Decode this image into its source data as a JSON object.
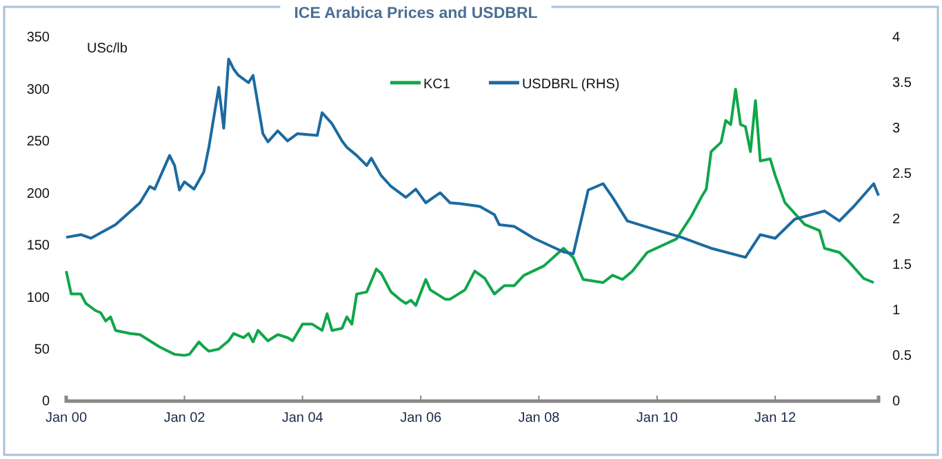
{
  "chart_data": {
    "type": "line",
    "title": "ICE Arabica Prices and USDBRL",
    "ylabel": "USc/lb",
    "xlim": [
      "2000-01",
      "2013-10"
    ],
    "xticks": [
      {
        "value": "2000-01",
        "label": "Jan 00"
      },
      {
        "value": "2002-01",
        "label": "Jan 02"
      },
      {
        "value": "2004-01",
        "label": "Jan 04"
      },
      {
        "value": "2006-01",
        "label": "Jan 06"
      },
      {
        "value": "2008-01",
        "label": "Jan 08"
      },
      {
        "value": "2010-01",
        "label": "Jan 10"
      },
      {
        "value": "2012-01",
        "label": "Jan 12"
      }
    ],
    "ylim": [
      0,
      350
    ],
    "yticks": [
      0,
      50,
      100,
      150,
      200,
      250,
      300,
      350
    ],
    "y2lim": [
      0,
      4
    ],
    "y2ticks": [
      0,
      0.5,
      1,
      1.5,
      2,
      2.5,
      3,
      3.5,
      4
    ],
    "grid": false,
    "legend": "top",
    "marker": "none",
    "line_style": "solid",
    "series": [
      {
        "name": "KC1",
        "color": "#10a64a",
        "x": [
          "2000-01",
          "2000-02",
          "2000-04",
          "2000-05",
          "2000-07",
          "2000-08",
          "2000-09",
          "2000-10",
          "2000-11",
          "2001-02",
          "2001-04",
          "2001-06",
          "2001-08",
          "2001-11",
          "2002-01",
          "2002-02",
          "2002-04",
          "2002-05",
          "2002-06",
          "2002-08",
          "2002-10",
          "2002-11",
          "2003-01",
          "2003-02",
          "2003-03",
          "2003-04",
          "2003-06",
          "2003-08",
          "2003-10",
          "2003-11",
          "2004-01",
          "2004-03",
          "2004-05",
          "2004-06",
          "2004-07",
          "2004-09",
          "2004-10",
          "2004-11",
          "2004-12",
          "2005-02",
          "2005-04",
          "2005-05",
          "2005-07",
          "2005-09",
          "2005-10",
          "2005-11",
          "2005-12",
          "2006-02",
          "2006-03",
          "2006-06",
          "2006-07",
          "2006-10",
          "2006-12",
          "2007-02",
          "2007-04",
          "2007-06",
          "2007-08",
          "2007-10",
          "2008-02",
          "2008-06",
          "2008-08",
          "2008-10",
          "2009-02",
          "2009-04",
          "2009-06",
          "2009-08",
          "2009-11",
          "2010-05",
          "2010-08",
          "2010-10",
          "2010-11",
          "2010-12",
          "2011-02",
          "2011-03",
          "2011-04",
          "2011-05",
          "2011-06",
          "2011-07",
          "2011-08",
          "2011-09",
          "2011-10",
          "2011-12",
          "2012-01",
          "2012-03",
          "2012-07",
          "2012-10",
          "2012-11",
          "2013-02",
          "2013-04",
          "2013-07",
          "2013-09"
        ],
        "values": [
          125,
          103,
          103,
          94,
          87,
          85,
          77,
          81,
          68,
          65,
          64,
          58,
          52,
          45,
          44,
          45,
          57,
          52,
          48,
          50,
          58,
          65,
          61,
          65,
          57,
          68,
          58,
          64,
          61,
          58,
          74,
          74,
          68,
          84,
          68,
          70,
          81,
          74,
          103,
          105,
          127,
          123,
          105,
          97,
          94,
          97,
          92,
          117,
          107,
          98,
          98,
          107,
          125,
          118,
          103,
          111,
          111,
          121,
          130,
          147,
          138,
          117,
          114,
          121,
          117,
          125,
          143,
          156,
          178,
          196,
          204,
          240,
          249,
          270,
          266,
          300,
          266,
          264,
          240,
          289,
          231,
          233,
          217,
          191,
          170,
          164,
          147,
          143,
          134,
          118,
          114
        ]
      },
      {
        "name": "USDBRL (RHS)",
        "color": "#1c6aa0",
        "axis": "y2",
        "x": [
          "2000-01",
          "2000-04",
          "2000-06",
          "2000-11",
          "2001-04",
          "2001-06",
          "2001-07",
          "2001-10",
          "2001-11",
          "2001-12",
          "2002-01",
          "2002-03",
          "2002-05",
          "2002-06",
          "2002-08",
          "2002-09",
          "2002-10",
          "2002-11",
          "2002-12",
          "2003-02",
          "2003-03",
          "2003-05",
          "2003-06",
          "2003-08",
          "2003-10",
          "2003-12",
          "2004-04",
          "2004-05",
          "2004-07",
          "2004-09",
          "2004-10",
          "2004-12",
          "2005-02",
          "2005-03",
          "2005-05",
          "2005-07",
          "2005-10",
          "2005-12",
          "2006-02",
          "2006-05",
          "2006-07",
          "2006-09",
          "2007-01",
          "2007-04",
          "2007-05",
          "2007-08",
          "2007-12",
          "2008-06",
          "2008-08",
          "2008-11",
          "2009-02",
          "2009-04",
          "2009-07",
          "2010-01",
          "2010-06",
          "2010-12",
          "2011-07",
          "2011-10",
          "2012-01",
          "2012-05",
          "2012-11",
          "2013-02",
          "2013-05",
          "2013-09",
          "2013-10"
        ],
        "values": [
          1.8,
          1.83,
          1.79,
          1.94,
          2.18,
          2.36,
          2.33,
          2.7,
          2.59,
          2.32,
          2.41,
          2.33,
          2.52,
          2.79,
          3.45,
          3.0,
          3.76,
          3.65,
          3.58,
          3.5,
          3.58,
          2.94,
          2.85,
          2.97,
          2.86,
          2.94,
          2.92,
          3.17,
          3.05,
          2.86,
          2.79,
          2.7,
          2.59,
          2.67,
          2.48,
          2.36,
          2.24,
          2.33,
          2.18,
          2.29,
          2.18,
          2.17,
          2.14,
          2.05,
          1.94,
          1.92,
          1.79,
          1.64,
          1.62,
          2.32,
          2.39,
          2.24,
          1.98,
          1.88,
          1.8,
          1.68,
          1.58,
          1.83,
          1.79,
          2.0,
          2.09,
          1.98,
          2.14,
          2.39,
          2.26
        ]
      }
    ]
  }
}
